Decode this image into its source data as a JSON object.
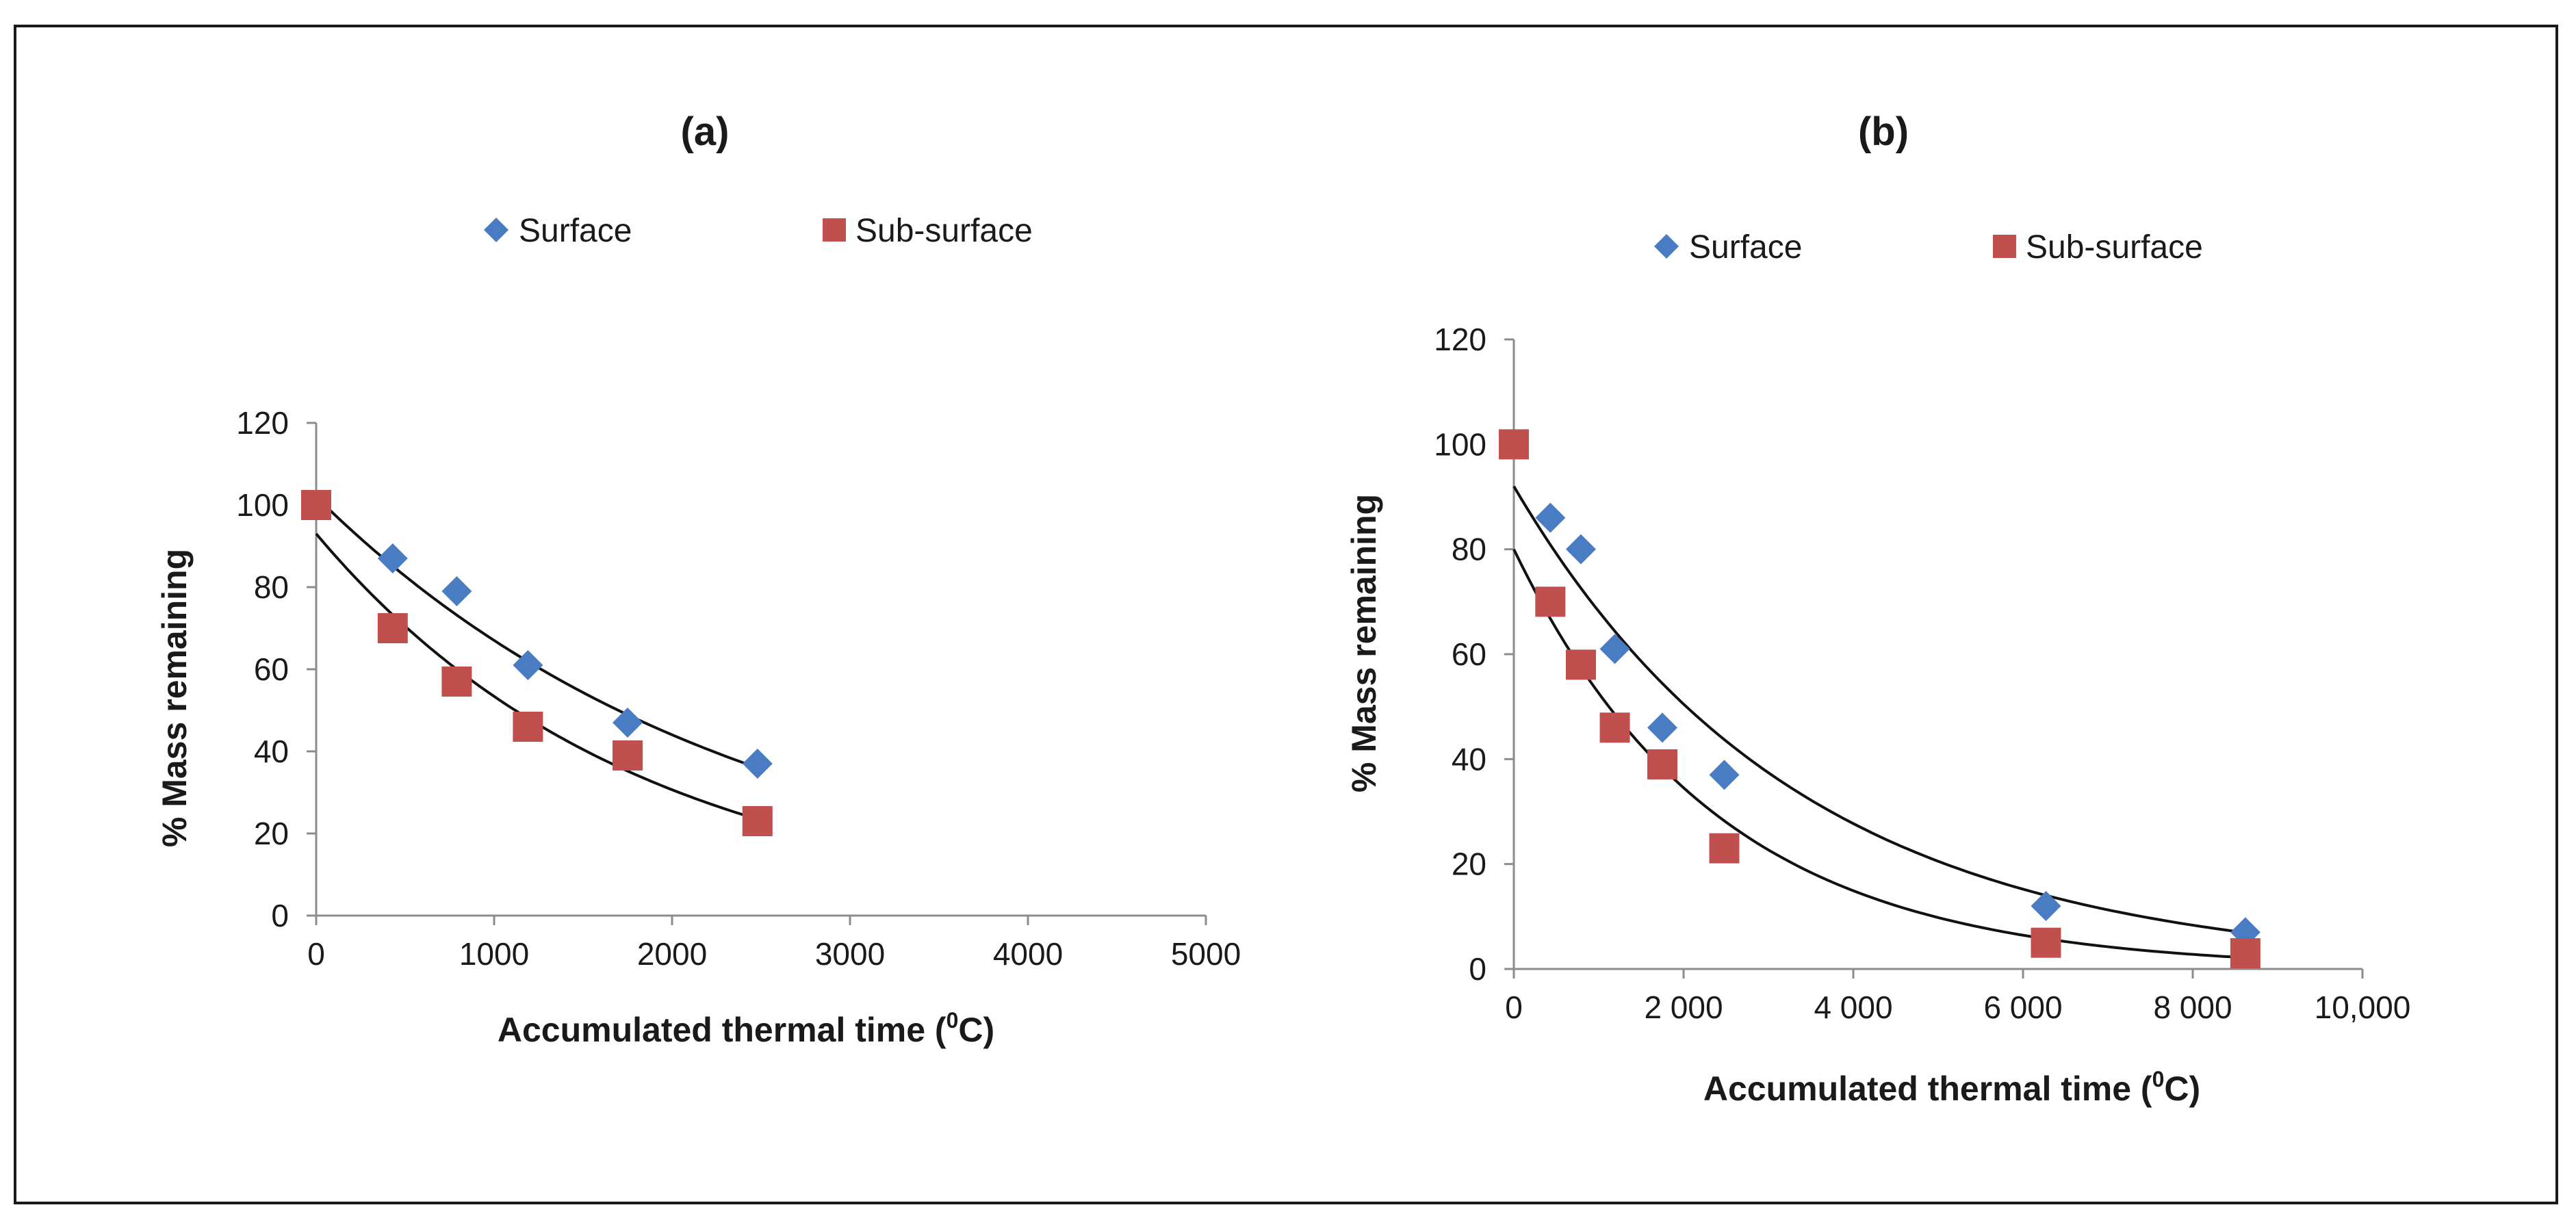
{
  "chart_data": [
    {
      "type": "scatter",
      "title": "(a)",
      "xlabel": "Accumulated thermal time (",
      "xlabel_sup": "0",
      "xlabel_end": "C)",
      "ylabel": "% Mass remaining",
      "xlim": [
        0,
        5000
      ],
      "ylim": [
        0,
        120
      ],
      "xticks": [
        0,
        1000,
        2000,
        3000,
        4000,
        5000
      ],
      "xtick_labels": [
        "0",
        "1000",
        "2000",
        "3000",
        "4000",
        "5000"
      ],
      "yticks": [
        0,
        20,
        40,
        60,
        80,
        100,
        120
      ],
      "ytick_labels": [
        "0",
        "20",
        "40",
        "60",
        "80",
        "100",
        "120"
      ],
      "grid": false,
      "legend_position": "top",
      "series": [
        {
          "name": "Surface",
          "marker": "diamond",
          "color": "#4a7cc4",
          "x": [
            0,
            430,
            790,
            1190,
            1750,
            2480
          ],
          "y": [
            100,
            87,
            79,
            61,
            47,
            37
          ],
          "trend": {
            "type": "exponential",
            "a": 102,
            "k": 0.00042,
            "x_range": [
              0,
              2480
            ]
          }
        },
        {
          "name": "Sub-surface",
          "marker": "square",
          "color": "#c0504d",
          "x": [
            0,
            430,
            790,
            1190,
            1750,
            2480
          ],
          "y": [
            100,
            70,
            57,
            46,
            39,
            23
          ],
          "trend": {
            "type": "exponential",
            "a": 93,
            "k": 0.000555,
            "x_range": [
              0,
              2480
            ]
          }
        }
      ]
    },
    {
      "type": "scatter",
      "title": "(b)",
      "xlabel": "Accumulated thermal time (",
      "xlabel_sup": "0",
      "xlabel_end": "C)",
      "ylabel": "% Mass remaining",
      "xlim": [
        0,
        10000
      ],
      "ylim": [
        0,
        120
      ],
      "xticks": [
        0,
        2000,
        4000,
        6000,
        8000,
        10000
      ],
      "xtick_labels": [
        "0",
        "2 000",
        "4 000",
        "6 000",
        "8 000",
        "10,000"
      ],
      "yticks": [
        0,
        20,
        40,
        60,
        80,
        100,
        120
      ],
      "ytick_labels": [
        "0",
        "20",
        "40",
        "60",
        "80",
        "100",
        "120"
      ],
      "grid": false,
      "legend_position": "top",
      "series": [
        {
          "name": "Surface",
          "marker": "diamond",
          "color": "#4a7cc4",
          "x": [
            0,
            430,
            790,
            1190,
            1750,
            2480,
            6270,
            8620
          ],
          "y": [
            100,
            86,
            80,
            61,
            46,
            37,
            12,
            7
          ],
          "trend": {
            "type": "exponential",
            "a": 92,
            "k": 0.0003,
            "x_range": [
              0,
              8620
            ]
          }
        },
        {
          "name": "Sub-surface",
          "marker": "square",
          "color": "#c0504d",
          "x": [
            0,
            430,
            790,
            1190,
            1750,
            2480,
            6270,
            8620
          ],
          "y": [
            100,
            70,
            58,
            46,
            39,
            23,
            5,
            3
          ],
          "trend": {
            "type": "exponential",
            "a": 80,
            "k": 0.00042,
            "x_range": [
              0,
              8620
            ]
          }
        }
      ]
    }
  ]
}
